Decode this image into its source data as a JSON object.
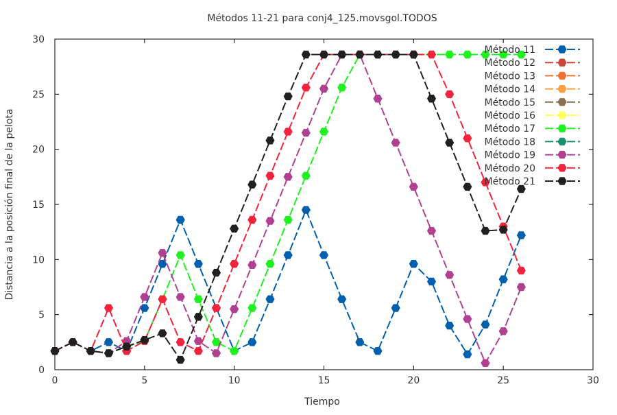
{
  "chart_data": {
    "type": "line",
    "title": "Métodos 11-21 para conj4_125.movsgol.TODOS",
    "xlabel": "Tiempo",
    "ylabel": "Distancia a la posición final de la pelota",
    "xlim": [
      0,
      30
    ],
    "ylim": [
      0,
      30
    ],
    "xticks": [
      0,
      5,
      10,
      15,
      20,
      25,
      30
    ],
    "yticks": [
      0,
      5,
      10,
      15,
      20,
      25,
      30
    ],
    "grid": false,
    "legend_position": "top-right",
    "marker": "hexagon",
    "line_style": "dashed",
    "series": [
      {
        "name": "Método 11",
        "color": "#0060ad",
        "points": [
          [
            0,
            1.7
          ],
          [
            1,
            2.5
          ],
          [
            2,
            1.7
          ],
          [
            3,
            2.5
          ],
          [
            4,
            1.7
          ],
          [
            5,
            5.6
          ],
          [
            6,
            9.6
          ],
          [
            7,
            13.6
          ],
          [
            8,
            9.6
          ],
          [
            9,
            5.6
          ],
          [
            10,
            1.7
          ],
          [
            11,
            2.5
          ],
          [
            12,
            6.4
          ],
          [
            13,
            10.4
          ],
          [
            14,
            14.5
          ],
          [
            15,
            10.4
          ],
          [
            16,
            6.4
          ],
          [
            17,
            2.5
          ],
          [
            18,
            1.7
          ],
          [
            19,
            5.6
          ],
          [
            20,
            9.6
          ],
          [
            21,
            8.0
          ],
          [
            22,
            4.0
          ],
          [
            23,
            1.4
          ],
          [
            24,
            4.1
          ],
          [
            25,
            8.2
          ],
          [
            26,
            12.2
          ]
        ]
      },
      {
        "name": "Método 12",
        "color": "#c8463a",
        "points": []
      },
      {
        "name": "Método 13",
        "color": "#f07030",
        "points": []
      },
      {
        "name": "Método 14",
        "color": "#ffa040",
        "points": []
      },
      {
        "name": "Método 15",
        "color": "#8a7050",
        "points": []
      },
      {
        "name": "Método 16",
        "color": "#ffff60",
        "points": []
      },
      {
        "name": "Método 17",
        "color": "#20f020",
        "points": [
          [
            0,
            1.7
          ],
          [
            1,
            2.5
          ],
          [
            2,
            1.7
          ],
          [
            3,
            1.5
          ],
          [
            4,
            2.1
          ],
          [
            5,
            2.6
          ],
          [
            6,
            6.4
          ],
          [
            7,
            10.4
          ],
          [
            8,
            6.4
          ],
          [
            9,
            2.5
          ],
          [
            10,
            1.7
          ],
          [
            11,
            5.6
          ],
          [
            12,
            9.6
          ],
          [
            13,
            13.6
          ],
          [
            14,
            17.6
          ],
          [
            15,
            21.6
          ],
          [
            16,
            25.6
          ],
          [
            17,
            28.6
          ],
          [
            18,
            28.6
          ],
          [
            19,
            28.6
          ],
          [
            20,
            28.6
          ],
          [
            21,
            28.6
          ],
          [
            22,
            28.6
          ],
          [
            23,
            28.6
          ],
          [
            24,
            28.6
          ],
          [
            25,
            28.6
          ],
          [
            26,
            28.6
          ]
        ]
      },
      {
        "name": "Método 18",
        "color": "#1a9070",
        "points": []
      },
      {
        "name": "Método 19",
        "color": "#b04090",
        "points": [
          [
            0,
            1.7
          ],
          [
            1,
            2.5
          ],
          [
            2,
            1.7
          ],
          [
            3,
            1.5
          ],
          [
            4,
            2.6
          ],
          [
            5,
            6.6
          ],
          [
            6,
            10.6
          ],
          [
            7,
            6.6
          ],
          [
            8,
            2.6
          ],
          [
            9,
            1.5
          ],
          [
            10,
            5.5
          ],
          [
            11,
            9.5
          ],
          [
            12,
            13.5
          ],
          [
            13,
            17.5
          ],
          [
            14,
            21.5
          ],
          [
            15,
            25.5
          ],
          [
            16,
            28.6
          ],
          [
            17,
            28.6
          ],
          [
            18,
            24.6
          ],
          [
            19,
            20.6
          ],
          [
            20,
            16.6
          ],
          [
            21,
            12.6
          ],
          [
            22,
            8.6
          ],
          [
            23,
            4.6
          ],
          [
            24,
            0.6
          ],
          [
            25,
            3.5
          ],
          [
            26,
            7.5
          ]
        ]
      },
      {
        "name": "Método 20",
        "color": "#f0243c",
        "points": [
          [
            0,
            1.7
          ],
          [
            1,
            2.5
          ],
          [
            2,
            1.7
          ],
          [
            3,
            5.6
          ],
          [
            4,
            1.7
          ],
          [
            5,
            2.6
          ],
          [
            6,
            6.4
          ],
          [
            7,
            2.5
          ],
          [
            8,
            1.7
          ],
          [
            9,
            5.6
          ],
          [
            10,
            9.6
          ],
          [
            11,
            13.6
          ],
          [
            12,
            17.6
          ],
          [
            13,
            21.6
          ],
          [
            14,
            25.6
          ],
          [
            15,
            28.6
          ],
          [
            16,
            28.6
          ],
          [
            17,
            28.6
          ],
          [
            18,
            28.6
          ],
          [
            19,
            28.6
          ],
          [
            20,
            28.6
          ],
          [
            21,
            28.6
          ],
          [
            22,
            25.0
          ],
          [
            23,
            21.0
          ],
          [
            24,
            17.0
          ],
          [
            25,
            13.0
          ],
          [
            26,
            9.0
          ]
        ]
      },
      {
        "name": "Método 21",
        "color": "#202020",
        "points": [
          [
            0,
            1.7
          ],
          [
            1,
            2.5
          ],
          [
            2,
            1.7
          ],
          [
            3,
            1.5
          ],
          [
            4,
            2.1
          ],
          [
            5,
            2.7
          ],
          [
            6,
            3.3
          ],
          [
            7,
            0.9
          ],
          [
            8,
            4.8
          ],
          [
            9,
            8.8
          ],
          [
            10,
            12.8
          ],
          [
            11,
            16.8
          ],
          [
            12,
            20.8
          ],
          [
            13,
            24.8
          ],
          [
            14,
            28.6
          ],
          [
            15,
            28.6
          ],
          [
            16,
            28.6
          ],
          [
            17,
            28.6
          ],
          [
            18,
            28.6
          ],
          [
            19,
            28.6
          ],
          [
            20,
            28.6
          ],
          [
            21,
            24.6
          ],
          [
            22,
            20.6
          ],
          [
            23,
            16.6
          ],
          [
            24,
            12.6
          ],
          [
            25,
            12.7
          ],
          [
            26,
            16.4
          ]
        ]
      }
    ]
  }
}
